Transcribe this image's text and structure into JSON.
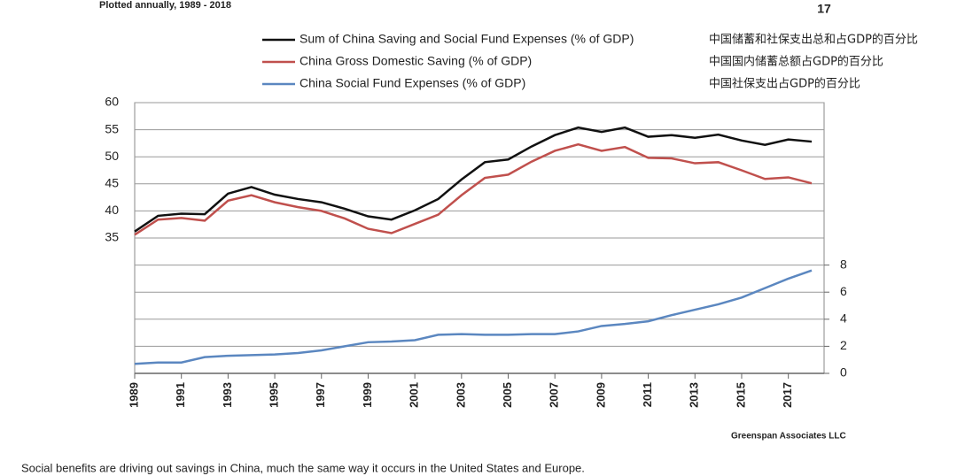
{
  "page_number": "17",
  "caption": "Social benefits are driving out savings in China, much the same way it occurs in the United States and Europe.",
  "chart_data": {
    "type": "line",
    "subtitle": "Plotted annually, 1989 - 2018",
    "source": "Greenspan Associates LLC",
    "annotations": [
      "中国储蓄和社保支出总和占GDP的百分比",
      "中国国内储蓄总额占GDP的百分比",
      "中国社保支出占GDP的百分比"
    ],
    "x": [
      1989,
      1990,
      1991,
      1992,
      1993,
      1994,
      1995,
      1996,
      1997,
      1998,
      1999,
      2000,
      2001,
      2002,
      2003,
      2004,
      2005,
      2006,
      2007,
      2008,
      2009,
      2010,
      2011,
      2012,
      2013,
      2014,
      2015,
      2016,
      2017,
      2018
    ],
    "xlim": [
      1989,
      2018
    ],
    "xticks": [
      1989,
      1991,
      1993,
      1995,
      1997,
      1999,
      2001,
      2003,
      2005,
      2007,
      2009,
      2011,
      2013,
      2015,
      2017
    ],
    "ylim": [
      10,
      60
    ],
    "yticks": [
      35,
      40,
      45,
      50,
      55,
      60
    ],
    "y2lim": [
      0,
      20
    ],
    "y2ticks": [
      0,
      2,
      4,
      6,
      8
    ],
    "grid": true,
    "series": [
      {
        "name": "Sum of China Saving and Social Fund Expenses (% of GDP)",
        "color": "#111111",
        "values": [
          36.2,
          39.1,
          39.5,
          39.4,
          43.2,
          44.4,
          43.0,
          42.2,
          41.6,
          40.4,
          39.0,
          38.4,
          40.1,
          42.2,
          45.8,
          49.0,
          49.5,
          51.9,
          54.0,
          55.4,
          54.6,
          55.4,
          53.7,
          54.0,
          53.5,
          54.1,
          53.0,
          52.2,
          53.2,
          52.8
        ]
      },
      {
        "name": "China Gross Domestic Saving (% of GDP)",
        "color": "#c0504d",
        "values": [
          35.6,
          38.4,
          38.7,
          38.2,
          41.9,
          42.9,
          41.6,
          40.7,
          40.0,
          38.6,
          36.7,
          35.9,
          37.6,
          39.3,
          42.9,
          46.1,
          46.7,
          49.1,
          51.1,
          52.3,
          51.1,
          51.8,
          49.8,
          49.7,
          48.8,
          49.0,
          47.5,
          45.9,
          46.2,
          45.1
        ]
      },
      {
        "name": "China Social Fund Expenses (% of GDP)",
        "color": "#5b87c0",
        "axis": "y2",
        "values": [
          0.7,
          0.8,
          0.8,
          1.2,
          1.3,
          1.35,
          1.4,
          1.5,
          1.7,
          2.0,
          2.3,
          2.35,
          2.45,
          2.85,
          2.9,
          2.85,
          2.85,
          2.9,
          2.9,
          3.1,
          3.5,
          3.65,
          3.85,
          4.3,
          4.7,
          5.1,
          5.6,
          6.3,
          7.0,
          7.6
        ]
      }
    ]
  }
}
